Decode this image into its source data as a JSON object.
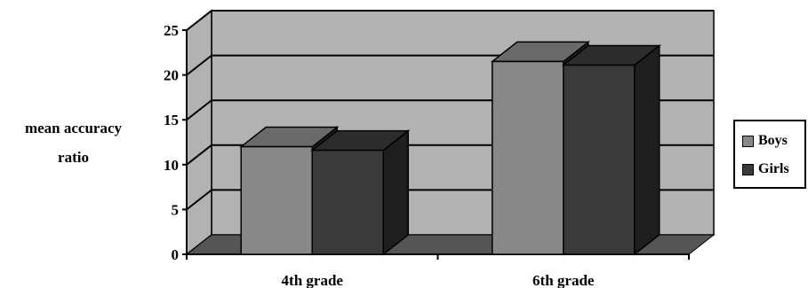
{
  "chart_data": {
    "type": "bar",
    "categories": [
      "4th grade",
      "6th grade"
    ],
    "series": [
      {
        "name": "Boys",
        "values": [
          12,
          21.5
        ]
      },
      {
        "name": "Girls",
        "values": [
          11.6,
          21.1
        ]
      }
    ],
    "ylabel": [
      "mean accuracy",
      "ratio"
    ],
    "ylim": [
      0,
      25
    ],
    "yticks": [
      0,
      5,
      10,
      15,
      20,
      25
    ],
    "grid": true,
    "legend": "right"
  },
  "legend": {
    "items": [
      {
        "label": "Boys",
        "color": "#888888"
      },
      {
        "label": "Girls",
        "color": "#3a3a3a"
      }
    ]
  },
  "colors": {
    "wall": "#b2b2b2",
    "floor": "#555555",
    "boys_front": "#888888",
    "boys_top": "#6a6a6a",
    "girls_front": "#3a3a3a",
    "girls_top": "#2c2c2c",
    "side": "#1e1e1e"
  }
}
